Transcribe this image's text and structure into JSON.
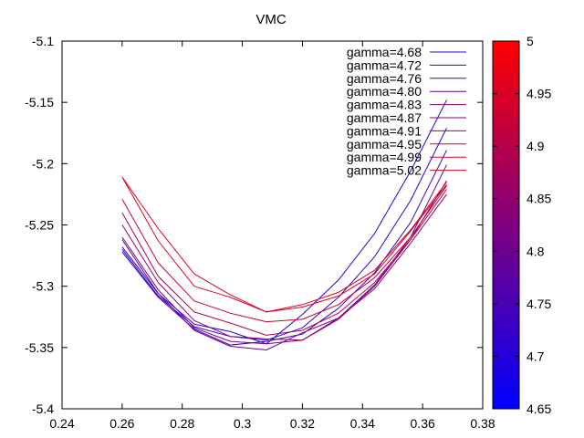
{
  "chart_data": {
    "type": "line",
    "title": "VMC",
    "xlabel": "",
    "ylabel": "",
    "xlim": [
      0.24,
      0.38
    ],
    "ylim": [
      -5.4,
      -5.1
    ],
    "xticks": [
      "0.24",
      "0.26",
      "0.28",
      "0.3",
      "0.32",
      "0.34",
      "0.36",
      "0.38"
    ],
    "yticks": [
      "-5.1",
      "-5.15",
      "-5.2",
      "-5.25",
      "-5.3",
      "-5.35",
      "-5.4"
    ],
    "grid": false,
    "legend_position": "top-right",
    "x": [
      0.26,
      0.272,
      0.284,
      0.296,
      0.308,
      0.32,
      0.332,
      0.344,
      0.356,
      0.368
    ],
    "series": [
      {
        "name": "gamma=4.68",
        "gamma": 4.68,
        "color": "#2400db",
        "values": [
          -5.268,
          -5.306,
          -5.331,
          -5.337,
          -5.347,
          -5.323,
          -5.295,
          -5.257,
          -5.206,
          -5.148
        ]
      },
      {
        "name": "gamma=4.72",
        "gamma": 4.72,
        "color": "#3300cc",
        "values": [
          -5.27,
          -5.308,
          -5.333,
          -5.341,
          -5.344,
          -5.334,
          -5.309,
          -5.276,
          -5.23,
          -5.171
        ]
      },
      {
        "name": "gamma=4.76",
        "gamma": 4.76,
        "color": "#4000bf",
        "values": [
          -5.272,
          -5.309,
          -5.335,
          -5.348,
          -5.345,
          -5.339,
          -5.318,
          -5.289,
          -5.248,
          -5.189
        ]
      },
      {
        "name": "gamma=4.80",
        "gamma": 4.8,
        "color": "#6600a0",
        "values": [
          -5.262,
          -5.306,
          -5.336,
          -5.349,
          -5.352,
          -5.338,
          -5.326,
          -5.299,
          -5.26,
          -5.201
        ]
      },
      {
        "name": "gamma=4.83",
        "gamma": 4.83,
        "color": "#7c0083",
        "values": [
          -5.26,
          -5.303,
          -5.334,
          -5.345,
          -5.347,
          -5.344,
          -5.327,
          -5.3,
          -5.262,
          -5.214
        ]
      },
      {
        "name": "gamma=4.87",
        "gamma": 4.87,
        "color": "#96006a",
        "values": [
          -5.25,
          -5.297,
          -5.328,
          -5.341,
          -5.343,
          -5.344,
          -5.326,
          -5.302,
          -5.265,
          -5.225
        ]
      },
      {
        "name": "gamma=4.91",
        "gamma": 4.91,
        "color": "#b4004b",
        "values": [
          -5.24,
          -5.292,
          -5.321,
          -5.33,
          -5.34,
          -5.336,
          -5.322,
          -5.297,
          -5.262,
          -5.221
        ]
      },
      {
        "name": "gamma=4.95",
        "gamma": 4.95,
        "color": "#c80037",
        "values": [
          -5.229,
          -5.281,
          -5.312,
          -5.322,
          -5.329,
          -5.327,
          -5.315,
          -5.293,
          -5.26,
          -5.218
        ]
      },
      {
        "name": "gamma=4.99",
        "gamma": 4.99,
        "color": "#e00020",
        "values": [
          -5.211,
          -5.263,
          -5.3,
          -5.309,
          -5.321,
          -5.317,
          -5.308,
          -5.29,
          -5.255,
          -5.217
        ]
      },
      {
        "name": "gamma=5.02",
        "gamma": 5.02,
        "color": "#dc0024",
        "values": [
          -5.211,
          -5.253,
          -5.29,
          -5.307,
          -5.321,
          -5.315,
          -5.305,
          -5.287,
          -5.254,
          -5.215
        ]
      }
    ],
    "colorbar": {
      "min": 4.65,
      "max": 5.0,
      "color_min": "#0000ff",
      "color_max": "#ff0000",
      "ticks": [
        "4.65",
        "4.7",
        "4.75",
        "4.8",
        "4.85",
        "4.9",
        "4.95",
        "5"
      ]
    }
  }
}
